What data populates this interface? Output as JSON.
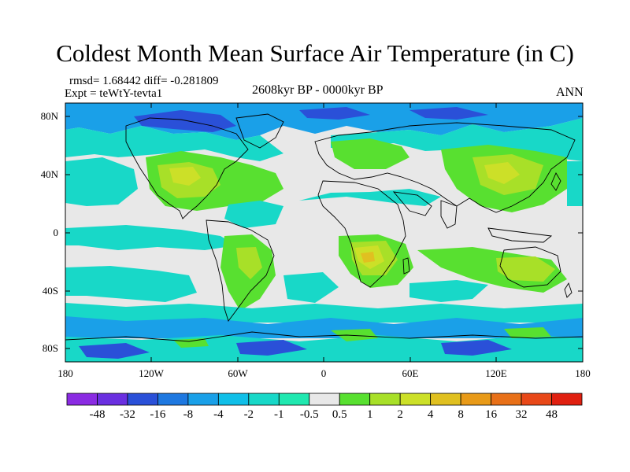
{
  "title": "Coldest Month Mean Surface Air Temperature (in C)",
  "stats": "rmsd= 1.68442 diff= -0.281809",
  "experiment": "Expt = teWtY-tevta1",
  "period": "2608kyr BP - 0000kyr BP",
  "season": "ANN",
  "lat_labels": [
    "80N",
    "40N",
    "0",
    "40S",
    "80S"
  ],
  "lon_labels": [
    "180",
    "120W",
    "60W",
    "0",
    "60E",
    "120E",
    "180"
  ],
  "colorbar": {
    "labels": [
      "-48",
      "-32",
      "-16",
      "-8",
      "-4",
      "-2",
      "-1",
      "-0.5",
      "0.5",
      "1",
      "2",
      "4",
      "8",
      "16",
      "32",
      "48"
    ],
    "colors": [
      "#8a2be2",
      "#6a2fe0",
      "#2a50d8",
      "#1e78e0",
      "#1aa0e8",
      "#10bfe8",
      "#18d8c8",
      "#20e8b0",
      "#e8e8e8",
      "#58e030",
      "#a8e028",
      "#cce028",
      "#e0c020",
      "#e89a18",
      "#e87018",
      "#e84818",
      "#e02010"
    ]
  },
  "colors": {
    "ocean_background": "#e8e8e8",
    "coast": "#000000"
  }
}
